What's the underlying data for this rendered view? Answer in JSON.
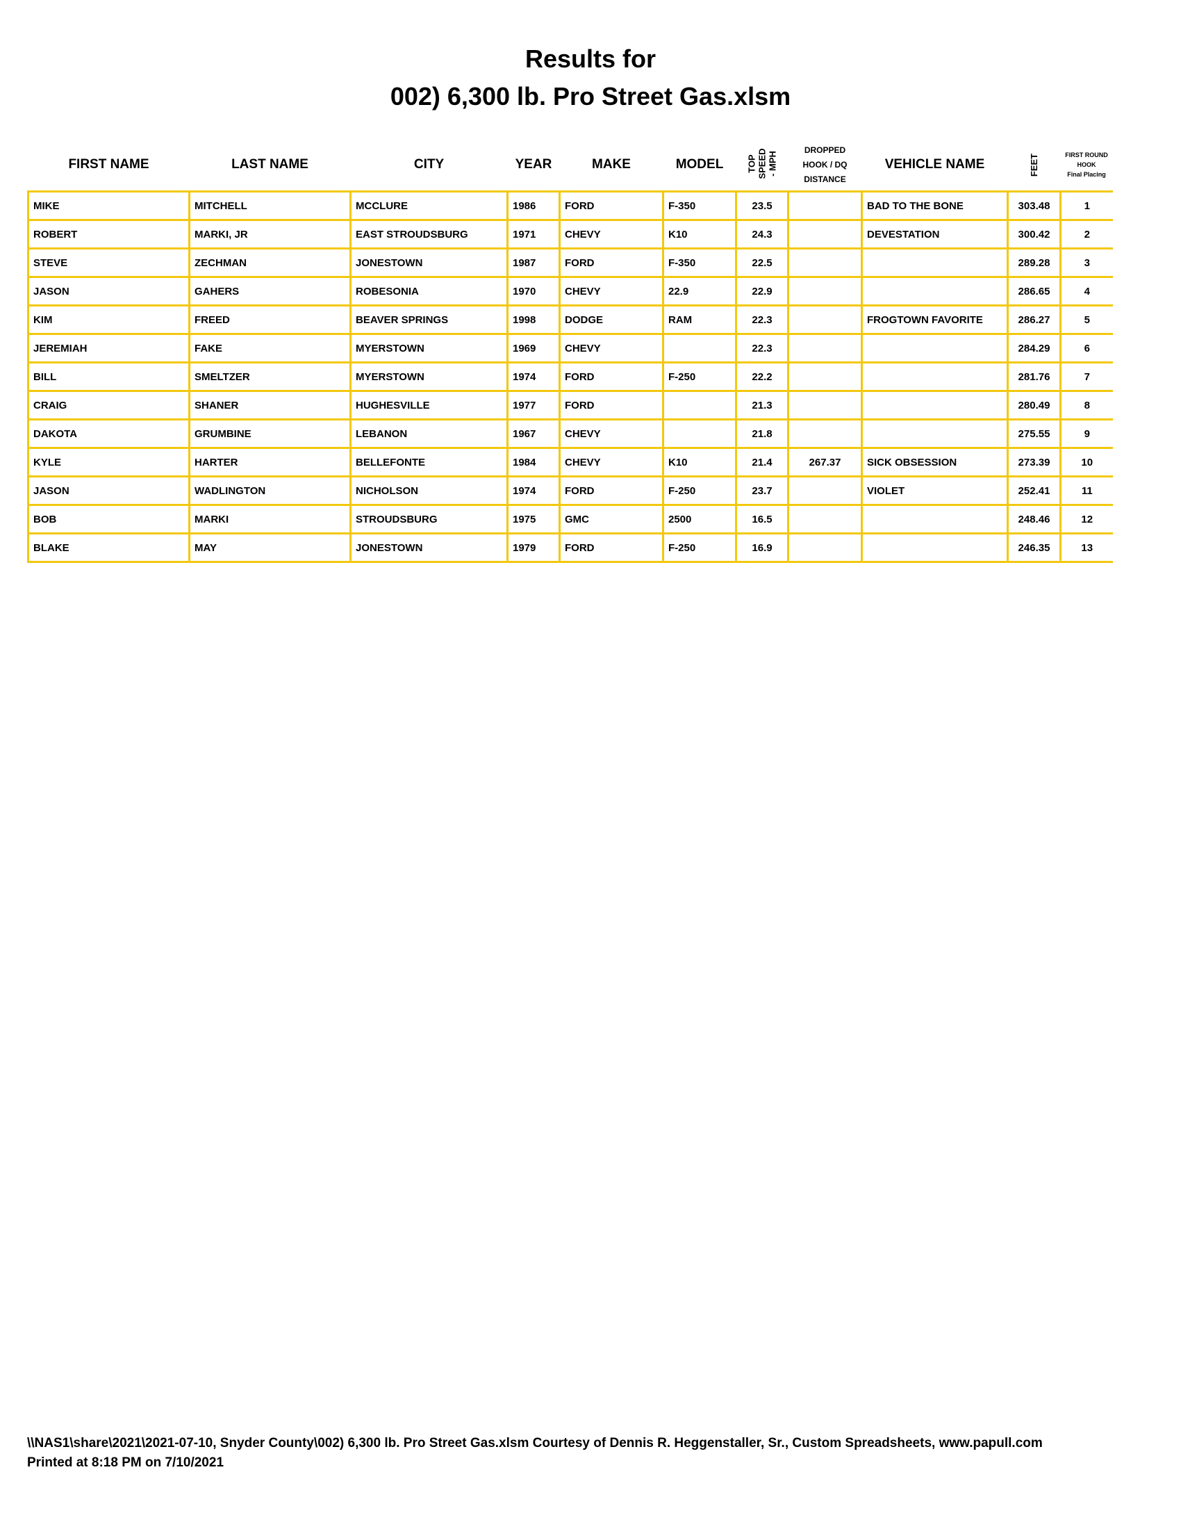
{
  "title": {
    "line1": "Results for",
    "line2": "002) 6,300 lb. Pro Street Gas.xlsm"
  },
  "columns": [
    "FIRST NAME",
    "LAST NAME",
    "CITY",
    "YEAR",
    "MAKE",
    "MODEL",
    "TOP SPEED - MPH",
    "DROPPED HOOK / DQ DISTANCE",
    "VEHICLE NAME",
    "FEET",
    "FIRST ROUND HOOK Final Placing"
  ],
  "header": {
    "top_speed": [
      "TOP",
      "SPEED",
      "- MPH"
    ],
    "dropped": [
      "DROPPED",
      "HOOK / DQ",
      "DISTANCE"
    ],
    "placing": [
      "FIRST ROUND",
      "HOOK",
      "Final Placing"
    ]
  },
  "rows": [
    [
      "MIKE",
      "MITCHELL",
      "MCCLURE",
      "1986",
      "FORD",
      "F-350",
      "23.5",
      "",
      "BAD TO THE BONE",
      "303.48",
      "1"
    ],
    [
      "ROBERT",
      "MARKI, JR",
      "EAST STROUDSBURG",
      "1971",
      "CHEVY",
      "K10",
      "24.3",
      "",
      "DEVESTATION",
      "300.42",
      "2"
    ],
    [
      "STEVE",
      "ZECHMAN",
      "JONESTOWN",
      "1987",
      "FORD",
      "F-350",
      "22.5",
      "",
      "",
      "289.28",
      "3"
    ],
    [
      "JASON",
      "GAHERS",
      "ROBESONIA",
      "1970",
      "CHEVY",
      "22.9",
      "22.9",
      "",
      "",
      "286.65",
      "4"
    ],
    [
      "KIM",
      "FREED",
      "BEAVER SPRINGS",
      "1998",
      "DODGE",
      "RAM",
      "22.3",
      "",
      "FROGTOWN FAVORITE",
      "286.27",
      "5"
    ],
    [
      "JEREMIAH",
      "FAKE",
      "MYERSTOWN",
      "1969",
      "CHEVY",
      "",
      "22.3",
      "",
      "",
      "284.29",
      "6"
    ],
    [
      "BILL",
      "SMELTZER",
      "MYERSTOWN",
      "1974",
      "FORD",
      "F-250",
      "22.2",
      "",
      "",
      "281.76",
      "7"
    ],
    [
      "CRAIG",
      "SHANER",
      "HUGHESVILLE",
      "1977",
      "FORD",
      "",
      "21.3",
      "",
      "",
      "280.49",
      "8"
    ],
    [
      "DAKOTA",
      "GRUMBINE",
      "LEBANON",
      "1967",
      "CHEVY",
      "",
      "21.8",
      "",
      "",
      "275.55",
      "9"
    ],
    [
      "KYLE",
      "HARTER",
      "BELLEFONTE",
      "1984",
      "CHEVY",
      "K10",
      "21.4",
      "267.37",
      "SICK OBSESSION",
      "273.39",
      "10"
    ],
    [
      "JASON",
      "WADLINGTON",
      "NICHOLSON",
      "1974",
      "FORD",
      "F-250",
      "23.7",
      "",
      "VIOLET",
      "252.41",
      "11"
    ],
    [
      "BOB",
      "MARKI",
      "STROUDSBURG",
      "1975",
      "GMC",
      "2500",
      "16.5",
      "",
      "",
      "248.46",
      "12"
    ],
    [
      "BLAKE",
      "MAY",
      "JONESTOWN",
      "1979",
      "FORD",
      "F-250",
      "16.9",
      "",
      "",
      "246.35",
      "13"
    ]
  ],
  "footer": {
    "line1": "\\\\NAS1\\share\\2021\\2021-07-10, Snyder County\\002) 6,300 lb. Pro Street Gas.xlsm  Courtesy of Dennis R. Heggenstaller, Sr., Custom Spreadsheets, www.papull.com",
    "line2": "Printed at 8:18 PM on 7/10/2021"
  },
  "colors": {
    "grid": "#f2c80f"
  }
}
